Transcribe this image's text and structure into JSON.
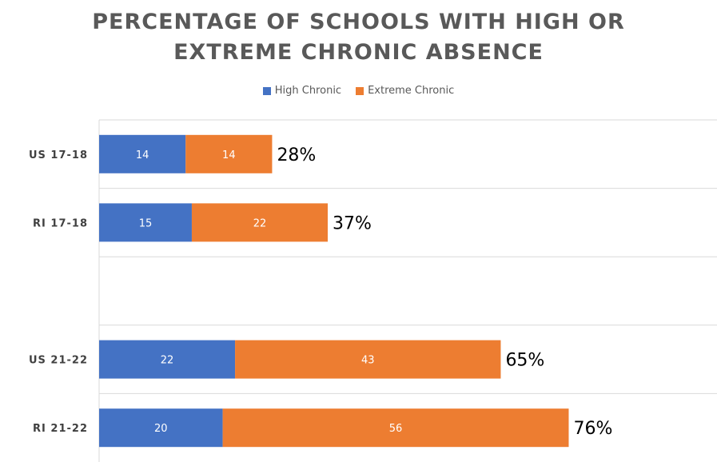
{
  "chart_data": {
    "type": "bar",
    "orientation": "horizontal",
    "stacked": true,
    "title_lines": [
      "PERCENTAGE OF SCHOOLS WITH HIGH OR",
      "EXTREME CHRONIC ABSENCE"
    ],
    "categories": [
      "US 17-18",
      "RI 17-18",
      "",
      "US 21-22",
      "RI 21-22"
    ],
    "series": [
      {
        "name": "High Chronic",
        "color": "#4472C4",
        "values": [
          14,
          15,
          null,
          22,
          20
        ]
      },
      {
        "name": "Extreme Chronic",
        "color": "#ED7D31",
        "values": [
          14,
          22,
          null,
          43,
          56
        ]
      }
    ],
    "totals": [
      "28%",
      "37%",
      "",
      "65%",
      "76%"
    ],
    "legend_position": "top",
    "gridlines": "horizontal",
    "xlim": [
      0,
      100
    ]
  }
}
